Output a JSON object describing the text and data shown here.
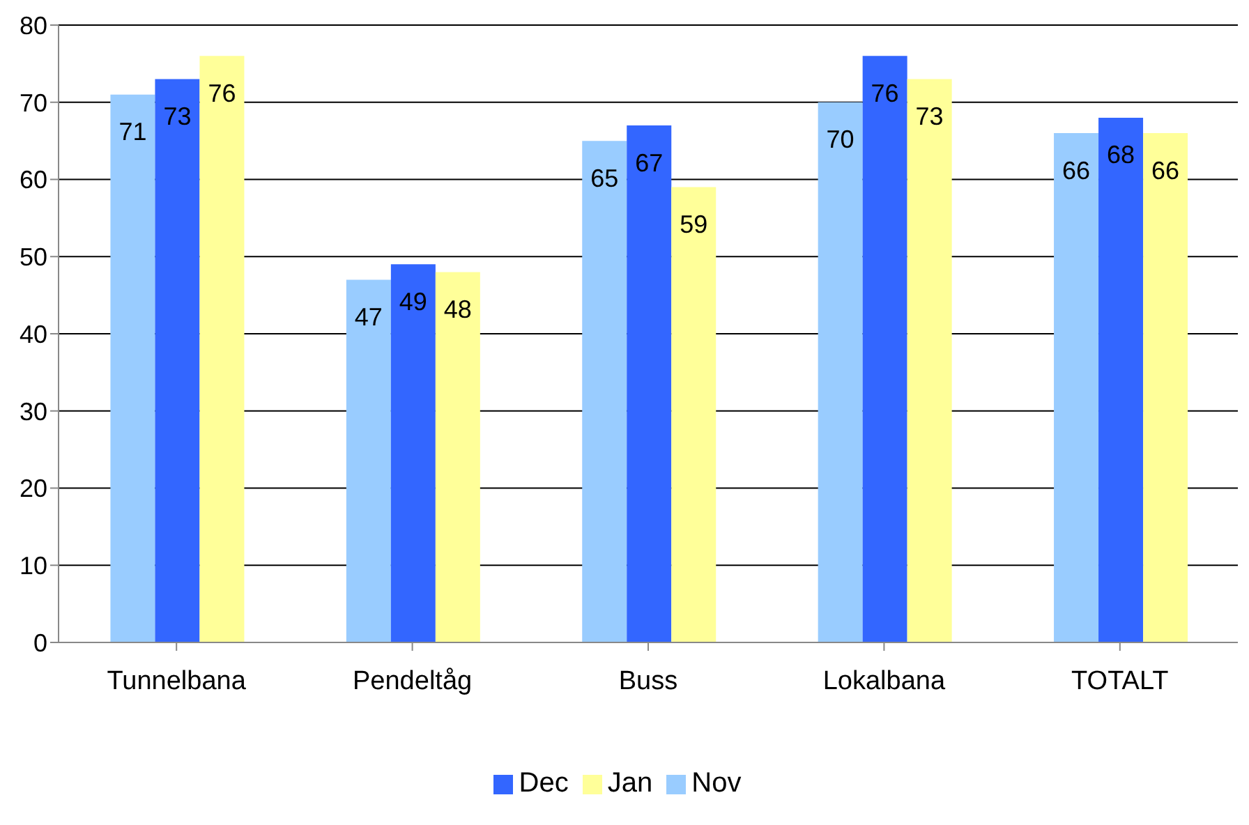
{
  "chart_data": {
    "type": "bar",
    "categories": [
      "Tunnelbana",
      "Pendeltåg",
      "Buss",
      "Lokalbana",
      "TOTALT"
    ],
    "series": [
      {
        "name": "Nov",
        "color": "#99ccff",
        "values": [
          71,
          47,
          65,
          70,
          66
        ]
      },
      {
        "name": "Dec",
        "color": "#3366ff",
        "values": [
          73,
          49,
          67,
          76,
          68
        ]
      },
      {
        "name": "Jan",
        "color": "#ffff99",
        "values": [
          76,
          48,
          59,
          73,
          66
        ]
      }
    ],
    "ylim": [
      0,
      80
    ],
    "yticks": [
      0,
      10,
      20,
      30,
      40,
      50,
      60,
      70,
      80
    ],
    "grid": "y",
    "legend": "bottom",
    "data_labels": true
  }
}
